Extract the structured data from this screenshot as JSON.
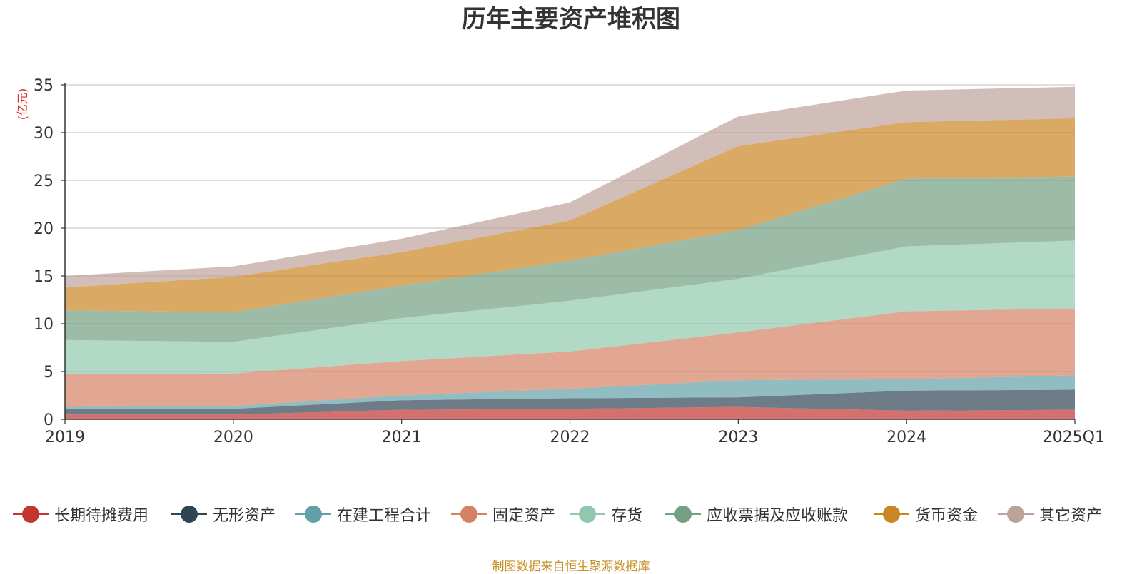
{
  "chart_data": {
    "type": "area",
    "title": "历年主要资产堆积图",
    "unit_label": "(亿元)",
    "x": [
      "2019",
      "2020",
      "2021",
      "2022",
      "2023",
      "2024",
      "2025Q1"
    ],
    "y_ticks": [
      "0",
      "5",
      "10",
      "15",
      "20",
      "25",
      "30",
      "35"
    ],
    "ylim": [
      0,
      35
    ],
    "stacked": true,
    "grid": true,
    "legend_position": "bottom",
    "series": [
      {
        "name": "长期待摊费用",
        "color": "#c23531",
        "values": [
          0.5,
          0.5,
          1.0,
          1.1,
          1.3,
          0.9,
          1.0
        ]
      },
      {
        "name": "无形资产",
        "color": "#2f4554",
        "values": [
          0.6,
          0.6,
          1.0,
          1.1,
          1.0,
          2.1,
          2.1
        ]
      },
      {
        "name": "在建工程合计",
        "color": "#61a0a8",
        "values": [
          0.2,
          0.3,
          0.5,
          1.0,
          1.8,
          1.2,
          1.5
        ]
      },
      {
        "name": "固定资产",
        "color": "#d48265",
        "values": [
          3.4,
          3.4,
          3.6,
          3.9,
          5.0,
          7.1,
          7.0
        ]
      },
      {
        "name": "存货",
        "color": "#91c7ae",
        "values": [
          3.6,
          3.3,
          4.5,
          5.3,
          5.6,
          6.8,
          7.1
        ]
      },
      {
        "name": "应收票据及应收账款",
        "color": "#749f83",
        "values": [
          3.1,
          3.1,
          3.4,
          4.2,
          5.1,
          7.1,
          6.7
        ]
      },
      {
        "name": "货币资金",
        "color": "#ca8622",
        "values": [
          2.4,
          3.7,
          3.5,
          4.2,
          8.8,
          5.9,
          6.1
        ]
      },
      {
        "name": "其它资产",
        "color": "#bda29a",
        "values": [
          1.2,
          1.1,
          1.4,
          1.9,
          3.1,
          3.3,
          3.3
        ]
      }
    ]
  },
  "source_note": "制图数据来自恒生聚源数据库"
}
